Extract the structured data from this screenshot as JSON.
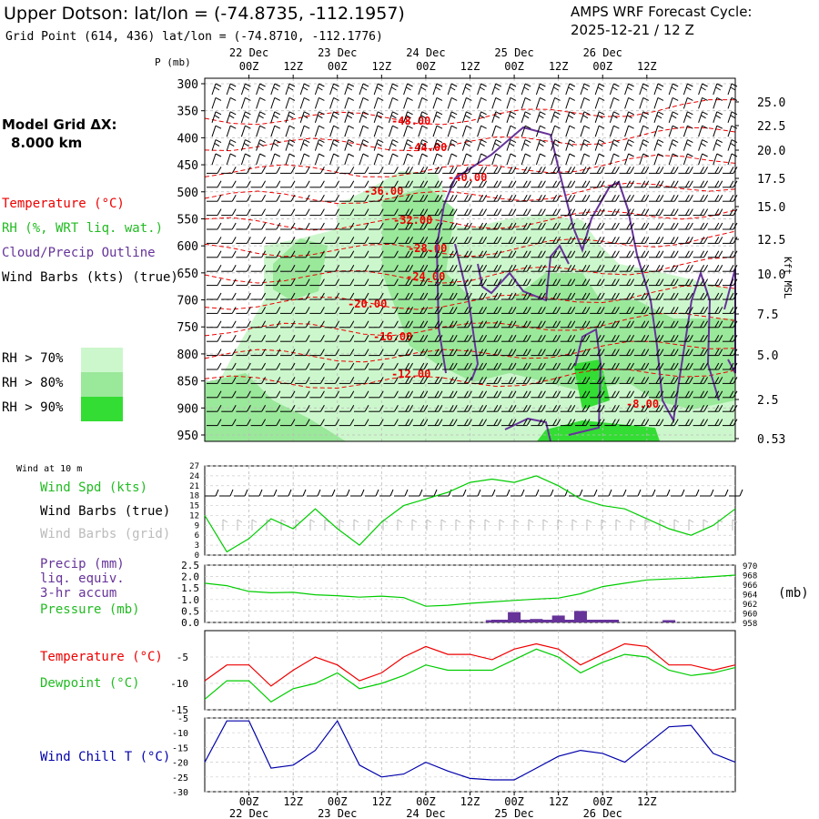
{
  "header": {
    "title": "Upper Dotson:  lat/lon = (-74.8735, -112.1957)",
    "subtitle": "Grid Point (614, 436) lat/lon = (-74.8710, -112.1776)",
    "cycle_label": "AMPS WRF Forecast Cycle:",
    "cycle_value": "2025-12-21 / 12  Z"
  },
  "left_labels": {
    "grid_label": "Model Grid ΔX:",
    "grid_value": "8.000 km",
    "temperature": "Temperature (°C)",
    "rh": "RH (%, WRT liq. wat.)",
    "cloud": "Cloud/Precip Outline",
    "wind": "Wind Barbs (kts) (true)",
    "wind10": "Wind at 10 m",
    "wind_spd": "Wind Spd (kts)",
    "barbs_true": "Wind Barbs (true)",
    "barbs_grid": "Wind Barbs (grid)",
    "precip": "Precip (mm)",
    "liq": "liq. equiv.",
    "accum": "3-hr accum",
    "pressure": "Pressure (mb)",
    "temp2": "Temperature (°C)",
    "dew": "Dewpoint (°C)",
    "chill": "Wind Chill T (°C)"
  },
  "rh_legend": [
    {
      "label": "RH > 70%",
      "color": "#ccf7cc"
    },
    {
      "label": "RH > 80%",
      "color": "#9ae89a"
    },
    {
      "label": "RH > 90%",
      "color": "#33dd33"
    }
  ],
  "colors": {
    "temperature": "#ee0000",
    "dewpoint": "#00cc00",
    "rh": "#33bb33",
    "cloud": "#663399",
    "wind": "#000000",
    "wind_grid": "#bbbbbb",
    "chill": "#0000aa",
    "precip": "#663399"
  },
  "chart_data": [
    {
      "type": "heatmap",
      "name": "sounding",
      "x_ticks": [
        "00Z",
        "12Z",
        "00Z",
        "12Z",
        "00Z",
        "12Z",
        "00Z",
        "12Z",
        "00Z",
        "12Z"
      ],
      "day_labels": [
        "22 Dec",
        "23 Dec",
        "24 Dec",
        "25 Dec",
        "26 Dec"
      ],
      "ylabel_left": "P (mb)",
      "p_ticks": [
        300,
        350,
        400,
        450,
        500,
        550,
        600,
        650,
        700,
        750,
        800,
        850,
        900,
        950
      ],
      "ylabel_right": "Kft MSL",
      "kft_ticks": [
        "25.0",
        "22.5",
        "20.0",
        "17.5",
        "15.0",
        "12.5",
        "10.0",
        "7.5",
        "5.0",
        "2.5",
        "0.53"
      ],
      "isotherm_labels": [
        "-48.00",
        "-44.00",
        "-40.00",
        "-36.00",
        "-32.00",
        "-28.00",
        "-24.00",
        "-20.00",
        "-16.00",
        "-12.00",
        "-8.00"
      ]
    },
    {
      "type": "line",
      "name": "wind",
      "yticks": [
        0,
        3,
        6,
        9,
        12,
        15,
        18,
        21,
        24,
        27
      ],
      "ylim": [
        0,
        27
      ],
      "x_hours": [
        0,
        6,
        12,
        18,
        24,
        30,
        36,
        42,
        48,
        54,
        60,
        66,
        72,
        78,
        84,
        90,
        96,
        102,
        108,
        114,
        120,
        126,
        132,
        138,
        144
      ],
      "speed": [
        12,
        1,
        5,
        11,
        8,
        14,
        8,
        3,
        10,
        15,
        17,
        19,
        22,
        23,
        22,
        24,
        21,
        17,
        15,
        14,
        11,
        8,
        6,
        9,
        14
      ]
    },
    {
      "type": "line",
      "name": "precip_pressure",
      "precip_yticks": [
        "0.0",
        "0.5",
        "1.0",
        "1.5",
        "2.0",
        "2.5"
      ],
      "precip_ylim": [
        0,
        2.5
      ],
      "pressure_yticks": [
        958,
        960,
        962,
        964,
        966,
        968,
        970
      ],
      "pressure_ylim": [
        958,
        970
      ],
      "pressure_unit": "(mb)",
      "x_hours": [
        0,
        6,
        12,
        18,
        24,
        30,
        36,
        42,
        48,
        54,
        60,
        66,
        72,
        78,
        84,
        90,
        96,
        102,
        108,
        114,
        120,
        126,
        132,
        138,
        144
      ],
      "pressure": [
        966.2,
        965.7,
        964.5,
        964.2,
        964.3,
        963.8,
        963.6,
        963.3,
        963.5,
        963.2,
        961.4,
        961.6,
        962.0,
        962.3,
        962.6,
        962.9,
        963.1,
        964.0,
        965.5,
        966.2,
        966.9,
        967.1,
        967.3,
        967.6,
        967.9
      ],
      "precip_x": [
        78,
        84,
        90,
        96,
        102,
        126
      ],
      "precip": [
        0.1,
        0.45,
        0.15,
        0.3,
        0.5,
        0.1
      ]
    },
    {
      "type": "line",
      "name": "temperature_dewpoint",
      "yticks": [
        -15,
        -10,
        -5
      ],
      "ylim": [
        -15,
        0
      ],
      "x_hours": [
        0,
        6,
        12,
        18,
        24,
        30,
        36,
        42,
        48,
        54,
        60,
        66,
        72,
        78,
        84,
        90,
        96,
        102,
        108,
        114,
        120,
        126,
        132,
        138,
        144
      ],
      "temperature": [
        -9.5,
        -6.5,
        -6.5,
        -10.5,
        -7.5,
        -5,
        -6.5,
        -9.5,
        -8,
        -5,
        -3,
        -4.5,
        -4.5,
        -5.5,
        -3.5,
        -2.5,
        -3.5,
        -6.5,
        -4.5,
        -2.5,
        -3,
        -6.5,
        -6.5,
        -7.5,
        -6.5
      ],
      "dewpoint": [
        -13,
        -9.5,
        -9.5,
        -13.5,
        -11,
        -10,
        -8,
        -11,
        -10,
        -8.5,
        -6.5,
        -7.5,
        -7.5,
        -7.5,
        -5.5,
        -3.5,
        -5,
        -8,
        -6,
        -4.5,
        -5,
        -7.5,
        -8.5,
        -8,
        -7
      ]
    },
    {
      "type": "line",
      "name": "wind_chill",
      "yticks": [
        -30,
        -25,
        -20,
        -15,
        -10,
        -5
      ],
      "ylim": [
        -30,
        -5
      ],
      "x_hours": [
        0,
        6,
        12,
        18,
        24,
        30,
        36,
        42,
        48,
        54,
        60,
        66,
        72,
        78,
        84,
        90,
        96,
        102,
        108,
        114,
        120,
        126,
        132,
        138,
        144
      ],
      "chill": [
        -20,
        -6,
        -6,
        -22,
        -21,
        -16,
        -6,
        -21,
        -25,
        -24,
        -20,
        -23,
        -25.5,
        -26,
        -26,
        -22,
        -18,
        -16,
        -17,
        -20,
        -14,
        -8,
        -7.5,
        -17,
        -20
      ]
    }
  ]
}
